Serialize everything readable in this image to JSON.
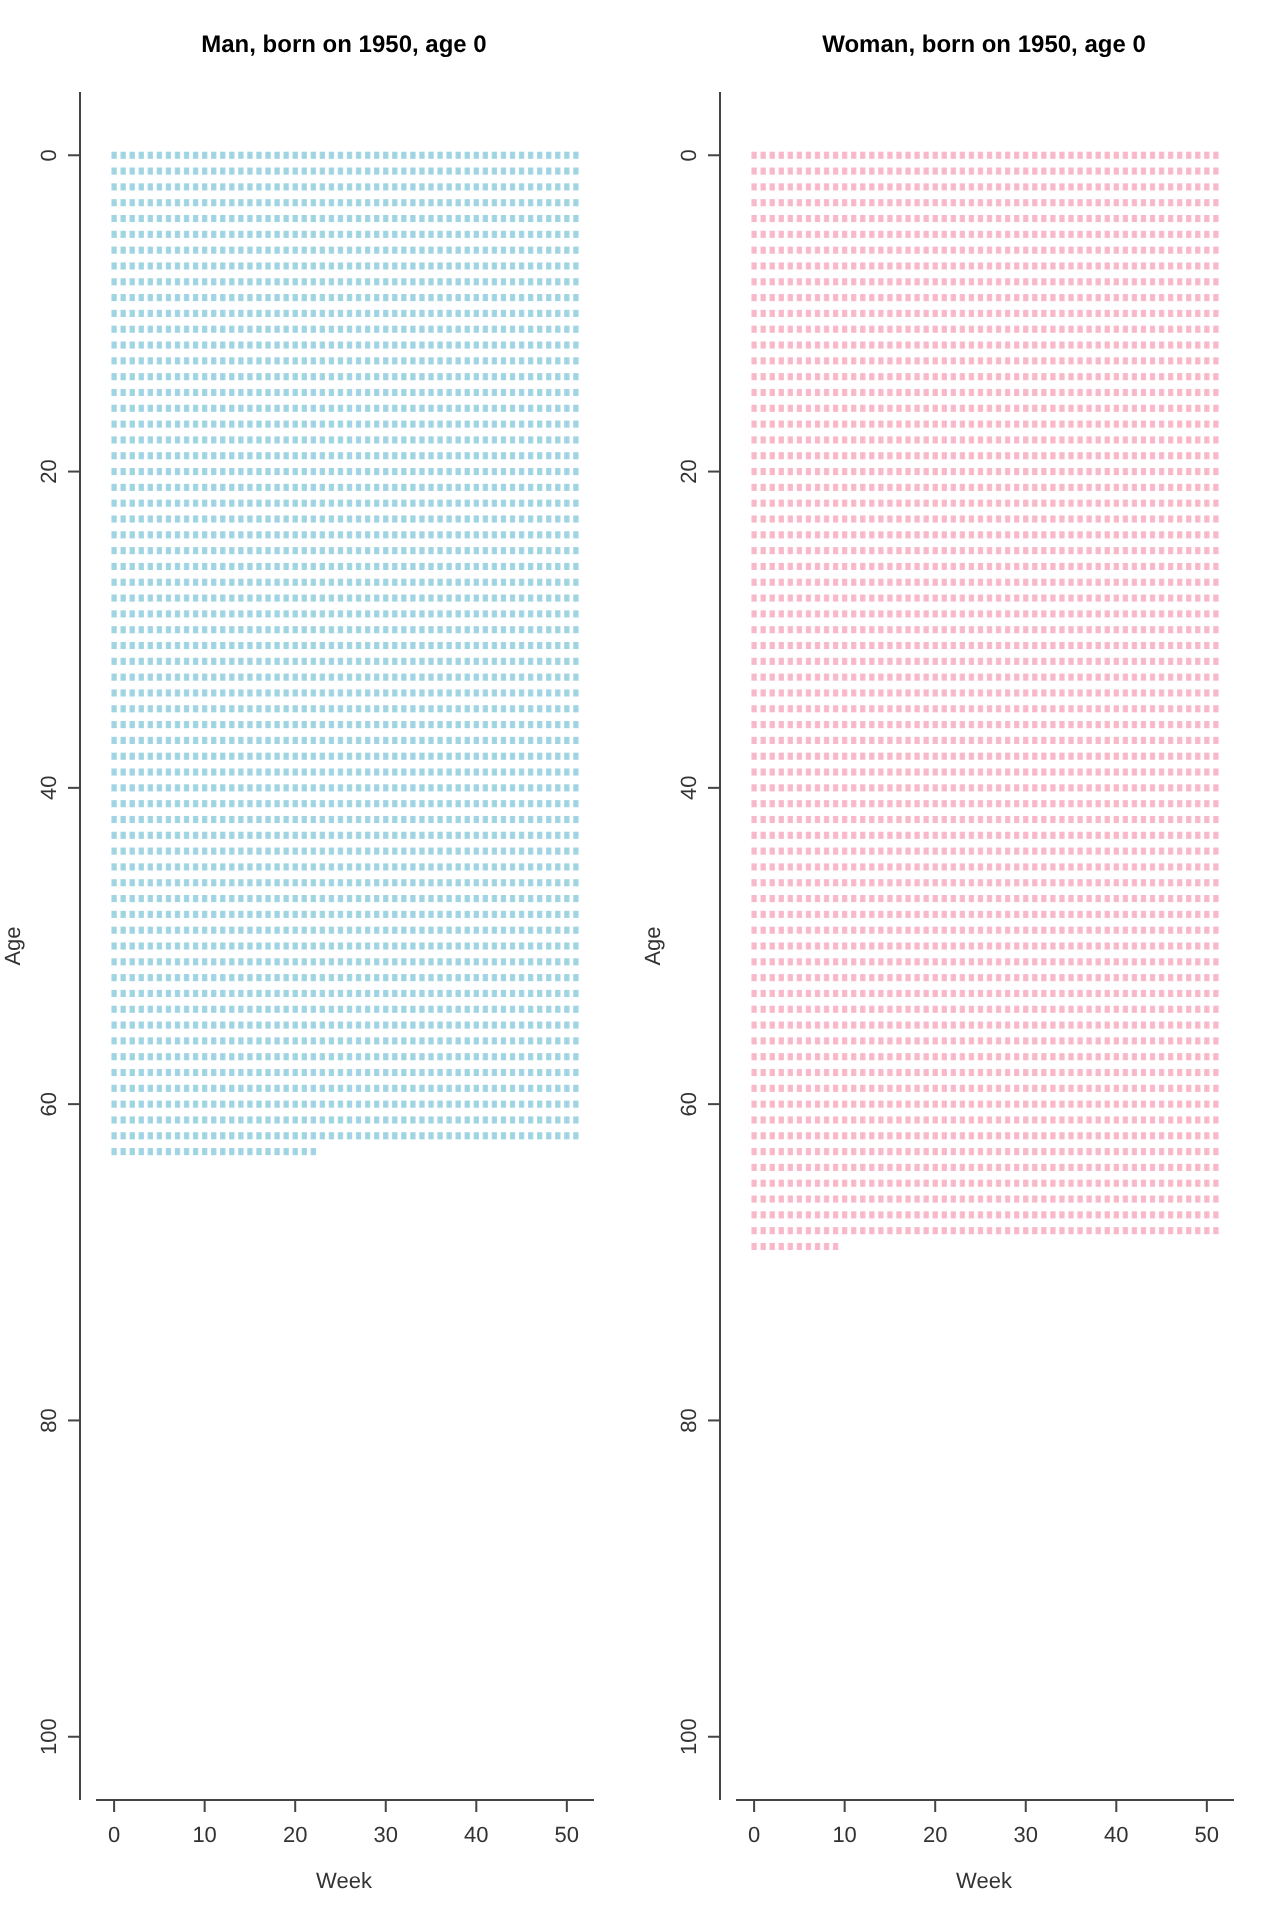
{
  "chart_data": [
    {
      "type": "bar",
      "orientation": "horizontal",
      "title": "Man, born on 1950, age 0",
      "xlabel": "Week",
      "ylabel": "Age",
      "color": "#9fd4e2",
      "x": [
        0,
        1,
        2,
        3,
        4,
        5,
        6,
        7,
        8,
        9,
        10,
        11,
        12,
        13,
        14,
        15,
        16,
        17,
        18,
        19,
        20,
        21,
        22,
        23,
        24,
        25,
        26,
        27,
        28,
        29,
        30,
        31,
        32,
        33,
        34,
        35,
        36,
        37,
        38,
        39,
        40,
        41,
        42,
        43,
        44,
        45,
        46,
        47,
        48,
        49,
        50,
        51,
        52,
        53,
        54,
        55,
        56,
        57,
        58,
        59,
        60,
        61,
        62,
        63
      ],
      "values": [
        52,
        52,
        52,
        52,
        52,
        52,
        52,
        52,
        52,
        52,
        52,
        52,
        52,
        52,
        52,
        52,
        52,
        52,
        52,
        52,
        52,
        52,
        52,
        52,
        52,
        52,
        52,
        52,
        52,
        52,
        52,
        52,
        52,
        52,
        52,
        52,
        52,
        52,
        52,
        52,
        52,
        52,
        52,
        52,
        52,
        52,
        52,
        52,
        52,
        52,
        52,
        52,
        52,
        52,
        52,
        52,
        52,
        52,
        52,
        52,
        52,
        52,
        52,
        23
      ],
      "base": [
        -0.5,
        -0.5,
        -0.5,
        -0.5,
        -0.5,
        -0.5,
        -0.5,
        -0.5,
        -0.5,
        -0.5,
        -0.5,
        -0.5,
        -0.5,
        -0.5,
        -0.5,
        -0.5,
        -0.5,
        -0.5,
        -0.5,
        -0.5,
        -0.5,
        -0.5,
        -0.5,
        -0.5,
        -0.5,
        -0.5,
        -0.5,
        -0.5,
        -0.5,
        -0.5,
        -0.5,
        -0.5,
        -0.5,
        -0.5,
        -0.5,
        -0.5,
        -0.5,
        -0.5,
        -0.5,
        -0.5,
        -0.5,
        -0.5,
        -0.5,
        -0.5,
        -0.5,
        -0.5,
        -0.5,
        -0.5,
        -0.5,
        -0.5,
        -0.5,
        -0.5,
        -0.5,
        -0.5,
        -0.5,
        -0.5,
        -0.5,
        -0.5,
        -0.5,
        -0.5,
        -0.5,
        -0.5,
        -0.5,
        -0.5
      ],
      "xlim": [
        -2,
        53
      ],
      "xticks": [
        0,
        10,
        20,
        30,
        40,
        50
      ],
      "ylim": [
        104,
        -4
      ],
      "yticks": [
        0,
        20,
        40,
        60,
        80,
        100
      ]
    },
    {
      "type": "bar",
      "orientation": "horizontal",
      "title": "Woman, born on 1950, age 0",
      "xlabel": "Week",
      "ylabel": "Age",
      "color": "#f9b8c9",
      "x": [
        0,
        1,
        2,
        3,
        4,
        5,
        6,
        7,
        8,
        9,
        10,
        11,
        12,
        13,
        14,
        15,
        16,
        17,
        18,
        19,
        20,
        21,
        22,
        23,
        24,
        25,
        26,
        27,
        28,
        29,
        30,
        31,
        32,
        33,
        34,
        35,
        36,
        37,
        38,
        39,
        40,
        41,
        42,
        43,
        44,
        45,
        46,
        47,
        48,
        49,
        50,
        51,
        52,
        53,
        54,
        55,
        56,
        57,
        58,
        59,
        60,
        61,
        62,
        63,
        64,
        65,
        66,
        67,
        68,
        69
      ],
      "values": [
        52,
        52,
        52,
        52,
        52,
        52,
        52,
        52,
        52,
        52,
        52,
        52,
        52,
        52,
        52,
        52,
        52,
        52,
        52,
        52,
        52,
        52,
        52,
        52,
        52,
        52,
        52,
        52,
        52,
        52,
        52,
        52,
        52,
        52,
        52,
        52,
        52,
        52,
        52,
        52,
        52,
        52,
        52,
        52,
        52,
        52,
        52,
        52,
        52,
        52,
        52,
        52,
        52,
        52,
        52,
        52,
        52,
        52,
        52,
        52,
        52,
        52,
        52,
        52,
        52,
        52,
        52,
        52,
        52,
        10
      ],
      "base": [
        -0.5,
        -0.5,
        -0.5,
        -0.5,
        -0.5,
        -0.5,
        -0.5,
        -0.5,
        -0.5,
        -0.5,
        -0.5,
        -0.5,
        -0.5,
        -0.5,
        -0.5,
        -0.5,
        -0.5,
        -0.5,
        -0.5,
        -0.5,
        -0.5,
        -0.5,
        -0.5,
        -0.5,
        -0.5,
        -0.5,
        -0.5,
        -0.5,
        -0.5,
        -0.5,
        -0.5,
        -0.5,
        -0.5,
        -0.5,
        -0.5,
        -0.5,
        -0.5,
        -0.5,
        -0.5,
        -0.5,
        -0.5,
        -0.5,
        -0.5,
        -0.5,
        -0.5,
        -0.5,
        -0.5,
        -0.5,
        -0.5,
        -0.5,
        -0.5,
        -0.5,
        -0.5,
        -0.5,
        -0.5,
        -0.5,
        -0.5,
        -0.5,
        -0.5,
        -0.5,
        -0.5,
        -0.5,
        -0.5,
        -0.5,
        -0.5,
        -0.5,
        -0.5,
        -0.5,
        -0.5,
        -0.5
      ],
      "xlim": [
        -2,
        53
      ],
      "xticks": [
        0,
        10,
        20,
        30,
        40,
        50
      ],
      "ylim": [
        104,
        -4
      ],
      "yticks": [
        0,
        20,
        40,
        60,
        80,
        100
      ]
    }
  ]
}
